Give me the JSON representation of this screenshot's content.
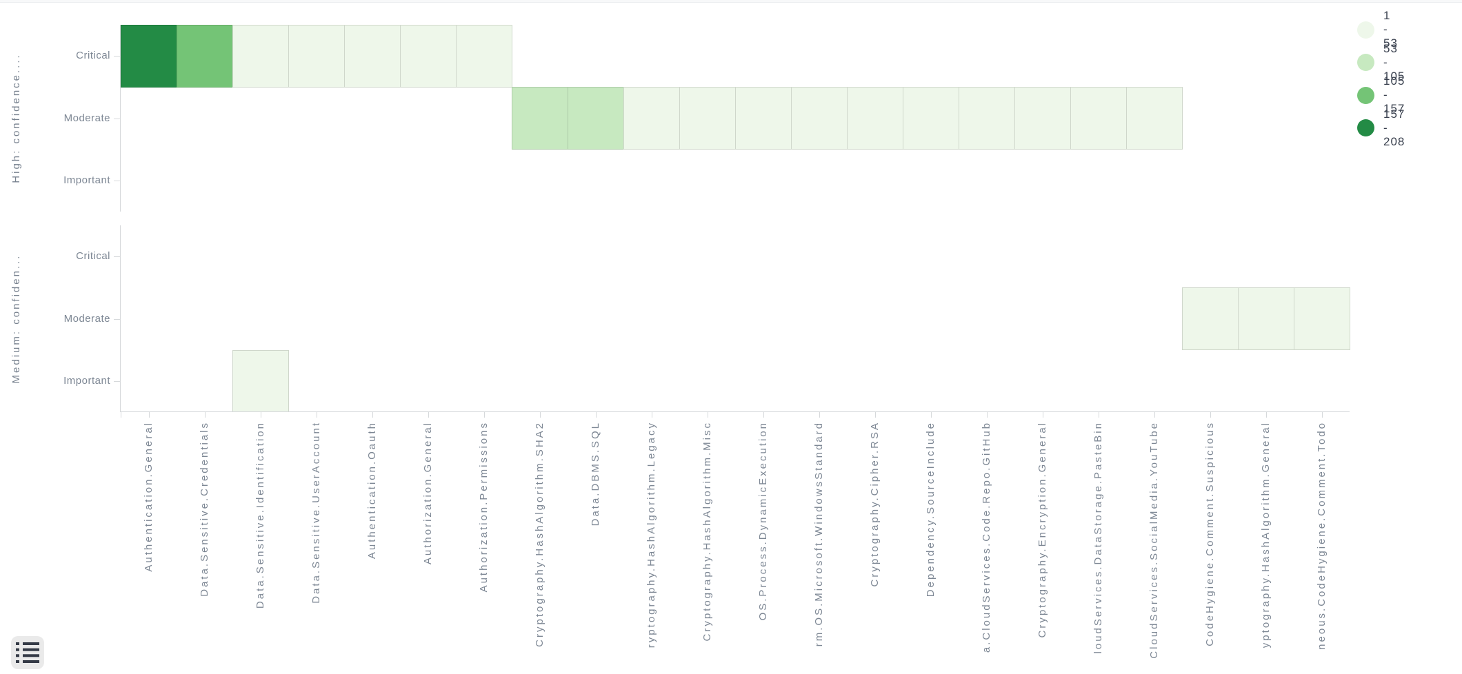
{
  "chart_data": {
    "type": "heatmap",
    "title": "",
    "x_categories": [
      "Authentication.General",
      "Data.Sensitive.Credentials",
      "Data.Sensitive.Identification",
      "Data.Sensitive.UserAccount",
      "Authentication.Oauth",
      "Authorization.General",
      "Authorization.Permissions",
      "Cryptography.HashAlgorithm.SHA2",
      "Data.DBMS.SQL",
      "ryptography.HashAlgorithm.Legacy",
      "Cryptography.HashAlgorithm.Misc",
      "OS.Process.DynamicExecution",
      "rm.OS.Microsoft.WindowsStandard",
      "Cryptography.Cipher.RSA",
      "Dependency.SourceInclude",
      "a.CloudServices.Code.Repo.GitHub",
      "Cryptography.Encryption.General",
      "loudServices.DataStorage.PasteBin",
      "CloudServices.SocialMedia.YouTube",
      "CodeHygiene.Comment.Suspicious",
      "yptography.HashAlgorithm.General",
      "neous.CodeHygiene.Comment.Todo"
    ],
    "y_rows": [
      "Critical",
      "Moderate",
      "Important"
    ],
    "panels": [
      {
        "label": "High: confidence....",
        "cells": [
          {
            "row": "Critical",
            "x_index": 0,
            "bucket": "157 - 208"
          },
          {
            "row": "Critical",
            "x_index": 1,
            "bucket": "105 - 157"
          },
          {
            "row": "Critical",
            "x_index": 2,
            "bucket": "1 - 53"
          },
          {
            "row": "Critical",
            "x_index": 3,
            "bucket": "1 - 53"
          },
          {
            "row": "Critical",
            "x_index": 4,
            "bucket": "1 - 53"
          },
          {
            "row": "Critical",
            "x_index": 5,
            "bucket": "1 - 53"
          },
          {
            "row": "Critical",
            "x_index": 6,
            "bucket": "1 - 53"
          },
          {
            "row": "Moderate",
            "x_index": 7,
            "bucket": "53 - 105"
          },
          {
            "row": "Moderate",
            "x_index": 8,
            "bucket": "53 - 105"
          },
          {
            "row": "Moderate",
            "x_index": 9,
            "bucket": "1 - 53"
          },
          {
            "row": "Moderate",
            "x_index": 10,
            "bucket": "1 - 53"
          },
          {
            "row": "Moderate",
            "x_index": 11,
            "bucket": "1 - 53"
          },
          {
            "row": "Moderate",
            "x_index": 12,
            "bucket": "1 - 53"
          },
          {
            "row": "Moderate",
            "x_index": 13,
            "bucket": "1 - 53"
          },
          {
            "row": "Moderate",
            "x_index": 14,
            "bucket": "1 - 53"
          },
          {
            "row": "Moderate",
            "x_index": 15,
            "bucket": "1 - 53"
          },
          {
            "row": "Moderate",
            "x_index": 16,
            "bucket": "1 - 53"
          },
          {
            "row": "Moderate",
            "x_index": 17,
            "bucket": "1 - 53"
          },
          {
            "row": "Moderate",
            "x_index": 18,
            "bucket": "1 - 53"
          }
        ]
      },
      {
        "label": "Medium: confiden...",
        "cells": [
          {
            "row": "Moderate",
            "x_index": 19,
            "bucket": "1 - 53"
          },
          {
            "row": "Moderate",
            "x_index": 20,
            "bucket": "1 - 53"
          },
          {
            "row": "Moderate",
            "x_index": 21,
            "bucket": "1 - 53"
          },
          {
            "row": "Important",
            "x_index": 2,
            "bucket": "1 - 53"
          }
        ]
      }
    ],
    "legend": [
      {
        "label": "1 - 53",
        "color": "#eef7ea"
      },
      {
        "label": "53 - 105",
        "color": "#c7e9c0"
      },
      {
        "label": "105 - 157",
        "color": "#74c476"
      },
      {
        "label": "157 - 208",
        "color": "#238b45"
      }
    ],
    "legend_position": "top-right",
    "grid": false
  },
  "icons": {
    "bottom_left_button": "list-icon"
  },
  "colors": {
    "axis": "#d6d9db",
    "tick_label": "#7d8794",
    "panel_label": "#78828f",
    "legend_text": "#39404e",
    "cell_border": "rgba(0,0,0,0.13)",
    "button_bg": "#eaeaea",
    "button_icon": "#343a46"
  }
}
